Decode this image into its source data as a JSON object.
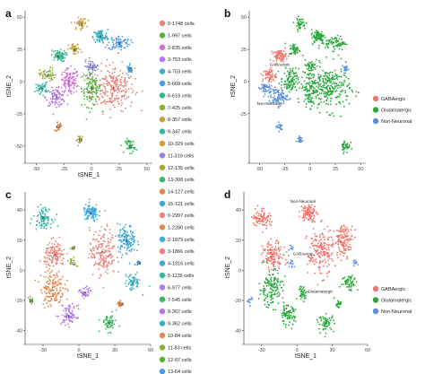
{
  "colors": {
    "clusters": [
      "#e8827a",
      "#e0874a",
      "#d49a3a",
      "#c3a23c",
      "#a8a83a",
      "#86ad3a",
      "#55b13e",
      "#3bb45e",
      "#38b68a",
      "#36b5a8",
      "#38b0c4",
      "#3fa8db",
      "#4f9ae8",
      "#8c86e8",
      "#b077e6",
      "#d46ed6"
    ],
    "gaba": "#f0736a",
    "glut": "#27a83a",
    "nonneuronal": "#5b8fe0",
    "axis": "#333333",
    "tick_text": "#444444",
    "panel_letter": "#111111"
  },
  "chart_data": [
    {
      "type": "scatter",
      "panel": "a",
      "xlabel": "tSNE_1",
      "ylabel": "tSNE_2",
      "xlim": [
        -60,
        55
      ],
      "ylim": [
        -62,
        55
      ],
      "xticks": [
        "-50",
        "-25",
        "0",
        "25",
        "50"
      ],
      "xtick_values": [
        -50,
        -25,
        0,
        25,
        50
      ],
      "yticks": [
        "-50",
        "-25",
        "0",
        "25",
        "50"
      ],
      "ytick_values": [
        -50,
        -25,
        0,
        25,
        50
      ],
      "legend": [
        "0-1748 cells",
        "1-997 cells",
        "2-835 cells",
        "3-753 cells",
        "4-703 cells",
        "5-669 cells",
        "6-619 cells",
        "7-425 cells",
        "8-357 cells",
        "9-347 cells",
        "10-329 cells",
        "11-319 cells",
        "12-135 cells",
        "13-308 cells",
        "14-127 cells",
        "15-121 cells"
      ],
      "color_scheme": "clusters",
      "clusters": [
        {
          "label": "0",
          "x": 20,
          "y": -5,
          "spread": [
            17,
            16
          ],
          "n": 240,
          "color_index": 0
        },
        {
          "label": "1",
          "x": 0,
          "y": -5,
          "spread": [
            8,
            13
          ],
          "n": 130,
          "color_index": 6
        },
        {
          "label": "2",
          "x": -20,
          "y": 0,
          "spread": [
            8,
            9
          ],
          "n": 110,
          "color_index": 15
        },
        {
          "label": "3",
          "x": -32,
          "y": -12,
          "spread": [
            8,
            6
          ],
          "n": 90,
          "color_index": 14
        },
        {
          "label": "4",
          "x": 8,
          "y": 35,
          "spread": [
            6,
            5
          ],
          "n": 85,
          "color_index": 10
        },
        {
          "label": "5",
          "x": 25,
          "y": 30,
          "spread": [
            9,
            5
          ],
          "n": 80,
          "color_index": 12
        },
        {
          "label": "6",
          "x": -30,
          "y": 20,
          "spread": [
            6,
            4
          ],
          "n": 70,
          "color_index": 8
        },
        {
          "label": "7",
          "x": -40,
          "y": 5,
          "spread": [
            6,
            5
          ],
          "n": 55,
          "color_index": 5
        },
        {
          "label": "8",
          "x": -15,
          "y": 25,
          "spread": [
            5,
            4
          ],
          "n": 45,
          "color_index": 3
        },
        {
          "label": "9",
          "x": -45,
          "y": -5,
          "spread": [
            5,
            4
          ],
          "n": 45,
          "color_index": 9
        },
        {
          "label": "10",
          "x": -10,
          "y": 45,
          "spread": [
            5,
            4
          ],
          "n": 42,
          "color_index": 2
        },
        {
          "label": "11",
          "x": 0,
          "y": 12,
          "spread": [
            6,
            4
          ],
          "n": 42,
          "color_index": 13
        },
        {
          "label": "12",
          "x": -10,
          "y": -45,
          "spread": [
            3,
            3
          ],
          "n": 22,
          "color_index": 4
        },
        {
          "label": "13",
          "x": 35,
          "y": -50,
          "spread": [
            4,
            5
          ],
          "n": 40,
          "color_index": 7
        },
        {
          "label": "14",
          "x": -30,
          "y": -35,
          "spread": [
            3,
            3
          ],
          "n": 20,
          "color_index": 1
        },
        {
          "label": "15",
          "x": 35,
          "y": 10,
          "spread": [
            3,
            3
          ],
          "n": 20,
          "color_index": 11
        }
      ]
    },
    {
      "type": "scatter",
      "panel": "b",
      "xlabel": "",
      "ylabel": "tSNE_2",
      "xlim": [
        -60,
        55
      ],
      "ylim": [
        -62,
        55
      ],
      "xticks": [
        "-50",
        "-25",
        "0",
        "25",
        "50"
      ],
      "xtick_values": [
        -50,
        -25,
        0,
        25,
        50
      ],
      "yticks": [
        "-25",
        "0",
        "25",
        "50"
      ],
      "ytick_values": [
        -25,
        0,
        25,
        50
      ],
      "legend": [
        "GABAergic",
        "Glutamatergic",
        "Non-Neuronal"
      ],
      "color_scheme": "groups",
      "annotations": [
        {
          "text": "GABAergic",
          "x": -30,
          "y": 12
        },
        {
          "text": "Non-Neuronal",
          "x": -40,
          "y": -18
        }
      ],
      "clusters": [
        {
          "x": 20,
          "y": -5,
          "spread": [
            17,
            16
          ],
          "n": 240,
          "group": "glut"
        },
        {
          "x": 0,
          "y": -5,
          "spread": [
            8,
            13
          ],
          "n": 130,
          "group": "glut"
        },
        {
          "x": -20,
          "y": 0,
          "spread": [
            8,
            9
          ],
          "n": 110,
          "group": "glut"
        },
        {
          "x": 25,
          "y": 30,
          "spread": [
            9,
            5
          ],
          "n": 80,
          "group": "glut"
        },
        {
          "x": 8,
          "y": 35,
          "spread": [
            6,
            5
          ],
          "n": 85,
          "group": "glut"
        },
        {
          "x": -15,
          "y": 25,
          "spread": [
            5,
            4
          ],
          "n": 45,
          "group": "glut"
        },
        {
          "x": 35,
          "y": -50,
          "spread": [
            4,
            5
          ],
          "n": 40,
          "group": "glut"
        },
        {
          "x": -10,
          "y": 45,
          "spread": [
            5,
            4
          ],
          "n": 42,
          "group": "glut"
        },
        {
          "x": 0,
          "y": 12,
          "spread": [
            6,
            4
          ],
          "n": 42,
          "group": "glut"
        },
        {
          "x": -30,
          "y": 20,
          "spread": [
            6,
            4
          ],
          "n": 70,
          "group": "gaba"
        },
        {
          "x": -40,
          "y": 5,
          "spread": [
            6,
            5
          ],
          "n": 55,
          "group": "gaba"
        },
        {
          "x": -32,
          "y": -12,
          "spread": [
            8,
            6
          ],
          "n": 90,
          "group": "nonneuronal"
        },
        {
          "x": -45,
          "y": -5,
          "spread": [
            5,
            4
          ],
          "n": 45,
          "group": "nonneuronal"
        },
        {
          "x": -10,
          "y": -45,
          "spread": [
            3,
            3
          ],
          "n": 22,
          "group": "nonneuronal"
        },
        {
          "x": -30,
          "y": -35,
          "spread": [
            3,
            3
          ],
          "n": 20,
          "group": "nonneuronal"
        },
        {
          "x": 35,
          "y": 10,
          "spread": [
            3,
            3
          ],
          "n": 20,
          "group": "nonneuronal"
        }
      ]
    },
    {
      "type": "scatter",
      "panel": "c",
      "xlabel": "tSNE_1",
      "ylabel": "tSNE_2",
      "xlim": [
        -45,
        60
      ],
      "ylim": [
        -48,
        52
      ],
      "xticks": [
        "-30",
        "0",
        "30",
        "60"
      ],
      "xtick_values": [
        -30,
        0,
        30,
        60
      ],
      "yticks": [
        "-40",
        "-20",
        "0",
        "20",
        "40"
      ],
      "ytick_values": [
        -40,
        -20,
        0,
        20,
        40
      ],
      "legend": [
        "0-2997 cells",
        "1-2280 cells",
        "2-1879 cells",
        "3-1866 cells",
        "4-1316 cells",
        "5-1135 cells",
        "6-977 cells",
        "7-545 cells",
        "8-367 cells",
        "9-362 cells",
        "10-84 cells",
        "11-83 cells",
        "12-67 cells",
        "13-64 cells",
        "14-50 cells"
      ],
      "color_scheme": "clusters",
      "clusters": [
        {
          "label": "0",
          "x": 20,
          "y": 12,
          "spread": [
            10,
            14
          ],
          "n": 180,
          "color_index": 0
        },
        {
          "label": "1",
          "x": -22,
          "y": -12,
          "spread": [
            9,
            11
          ],
          "n": 150,
          "color_index": 1
        },
        {
          "label": "2",
          "x": 40,
          "y": 20,
          "spread": [
            7,
            9
          ],
          "n": 130,
          "color_index": 11
        },
        {
          "label": "3",
          "x": -20,
          "y": 10,
          "spread": [
            8,
            8
          ],
          "n": 130,
          "color_index": 0
        },
        {
          "label": "4",
          "x": 10,
          "y": 38,
          "spread": [
            6,
            5
          ],
          "n": 100,
          "color_index": 11
        },
        {
          "label": "5",
          "x": -30,
          "y": 35,
          "spread": [
            7,
            6
          ],
          "n": 90,
          "color_index": 9
        },
        {
          "label": "6",
          "x": -8,
          "y": -30,
          "spread": [
            6,
            6
          ],
          "n": 80,
          "color_index": 14
        },
        {
          "label": "7",
          "x": 25,
          "y": -35,
          "spread": [
            6,
            5
          ],
          "n": 60,
          "color_index": 7
        },
        {
          "label": "8",
          "x": 5,
          "y": -15,
          "spread": [
            4,
            4
          ],
          "n": 40,
          "color_index": 14
        },
        {
          "label": "9",
          "x": 45,
          "y": -8,
          "spread": [
            6,
            5
          ],
          "n": 60,
          "color_index": 10
        },
        {
          "label": "10",
          "x": 35,
          "y": -22,
          "spread": [
            3,
            3
          ],
          "n": 20,
          "color_index": 1
        },
        {
          "label": "11",
          "x": -5,
          "y": 5,
          "spread": [
            3,
            3
          ],
          "n": 15,
          "color_index": 5
        },
        {
          "label": "12",
          "x": -40,
          "y": -20,
          "spread": [
            2,
            2
          ],
          "n": 12,
          "color_index": 6
        },
        {
          "label": "13",
          "x": 50,
          "y": 5,
          "spread": [
            2,
            2
          ],
          "n": 12,
          "color_index": 12
        },
        {
          "label": "14",
          "x": -5,
          "y": 15,
          "spread": [
            2,
            2
          ],
          "n": 10,
          "color_index": 4
        }
      ]
    },
    {
      "type": "scatter",
      "panel": "d",
      "xlabel": "tSNE_1",
      "ylabel": "tSNE_2",
      "xlim": [
        -45,
        60
      ],
      "ylim": [
        -48,
        52
      ],
      "xticks": [
        "-30",
        "0",
        "30",
        "60"
      ],
      "xtick_values": [
        -30,
        0,
        30,
        60
      ],
      "yticks": [
        "-40",
        "-20",
        "0",
        "20",
        "40"
      ],
      "ytick_values": [
        -40,
        -20,
        0,
        20,
        40
      ],
      "legend": [
        "GABAergic",
        "Glutamatergic",
        "Non-Neuronal"
      ],
      "color_scheme": "groups",
      "annotations": [
        {
          "text": "Non-Neuronal",
          "x": 5,
          "y": 45
        },
        {
          "text": "GABAergic",
          "x": 5,
          "y": 10
        },
        {
          "text": "Glutamatergic",
          "x": 20,
          "y": -15
        }
      ],
      "clusters": [
        {
          "x": 20,
          "y": 12,
          "spread": [
            10,
            14
          ],
          "n": 180,
          "group": "gaba"
        },
        {
          "x": -20,
          "y": 10,
          "spread": [
            8,
            8
          ],
          "n": 130,
          "group": "gaba"
        },
        {
          "x": 40,
          "y": 20,
          "spread": [
            7,
            9
          ],
          "n": 130,
          "group": "gaba"
        },
        {
          "x": -30,
          "y": 35,
          "spread": [
            7,
            6
          ],
          "n": 90,
          "group": "gaba"
        },
        {
          "x": 10,
          "y": 38,
          "spread": [
            6,
            5
          ],
          "n": 100,
          "group": "gaba"
        },
        {
          "x": -22,
          "y": -12,
          "spread": [
            9,
            11
          ],
          "n": 150,
          "group": "glut"
        },
        {
          "x": -8,
          "y": -30,
          "spread": [
            6,
            6
          ],
          "n": 80,
          "group": "glut"
        },
        {
          "x": 25,
          "y": -35,
          "spread": [
            6,
            5
          ],
          "n": 60,
          "group": "glut"
        },
        {
          "x": 5,
          "y": -15,
          "spread": [
            4,
            4
          ],
          "n": 40,
          "group": "glut"
        },
        {
          "x": 45,
          "y": -8,
          "spread": [
            6,
            5
          ],
          "n": 60,
          "group": "glut"
        },
        {
          "x": 35,
          "y": -22,
          "spread": [
            3,
            3
          ],
          "n": 20,
          "group": "glut"
        },
        {
          "x": -5,
          "y": 5,
          "spread": [
            3,
            3
          ],
          "n": 15,
          "group": "nonneuronal"
        },
        {
          "x": -40,
          "y": -20,
          "spread": [
            2,
            2
          ],
          "n": 12,
          "group": "nonneuronal"
        },
        {
          "x": 50,
          "y": 5,
          "spread": [
            2,
            2
          ],
          "n": 12,
          "group": "nonneuronal"
        },
        {
          "x": -5,
          "y": 15,
          "spread": [
            2,
            2
          ],
          "n": 10,
          "group": "nonneuronal"
        }
      ]
    }
  ]
}
